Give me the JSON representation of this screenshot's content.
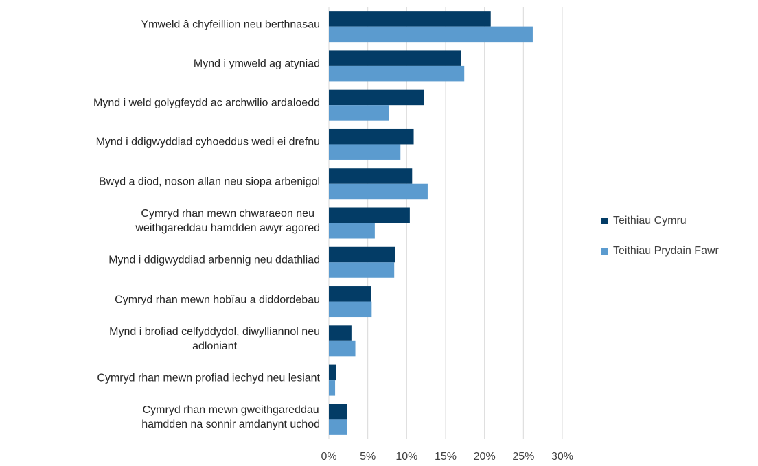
{
  "chart_data": {
    "type": "hbar",
    "categories": [
      "Ymweld â chyfeillion neu berthnasau",
      "Mynd i ymweld ag atyniad",
      "Mynd i weld golygfeydd ac archwilio ardaloedd",
      "Mynd i ddigwyddiad cyhoeddus wedi ei drefnu",
      "Bwyd a diod, noson allan neu siopa arbenigol",
      "Cymryd rhan mewn chwaraeon neu\nweithgareddau hamdden awyr agored",
      "Mynd i ddigwyddiad arbennig neu ddathliad",
      "Cymryd rhan mewn hobïau a diddordebau",
      "Mynd i brofiad celfyddydol, diwylliannol neu\nadloniant",
      "Cymryd rhan mewn profiad iechyd neu lesiant",
      "Cymryd rhan mewn gweithgareddau\nhamdden na sonnir amdanynt uchod"
    ],
    "series": [
      {
        "name": "Teithiau Cymru",
        "color": "#033c66",
        "values": [
          20.8,
          17.0,
          12.2,
          10.9,
          10.7,
          10.4,
          8.5,
          5.4,
          2.9,
          0.9,
          2.3
        ]
      },
      {
        "name": "Teithiau Prydain Fawr",
        "color": "#5b9bcf",
        "values": [
          26.2,
          17.4,
          7.7,
          9.2,
          12.7,
          5.9,
          8.4,
          5.5,
          3.4,
          0.8,
          2.3
        ]
      }
    ],
    "xlim": [
      0,
      30
    ],
    "xticks": [
      {
        "value": 0,
        "label": "0%"
      },
      {
        "value": 5,
        "label": "5%"
      },
      {
        "value": 10,
        "label": "10%"
      },
      {
        "value": 15,
        "label": "15%"
      },
      {
        "value": 20,
        "label": "20%"
      },
      {
        "value": 25,
        "label": "25%"
      },
      {
        "value": 30,
        "label": "30%"
      }
    ],
    "grid": true,
    "legend": "right"
  }
}
